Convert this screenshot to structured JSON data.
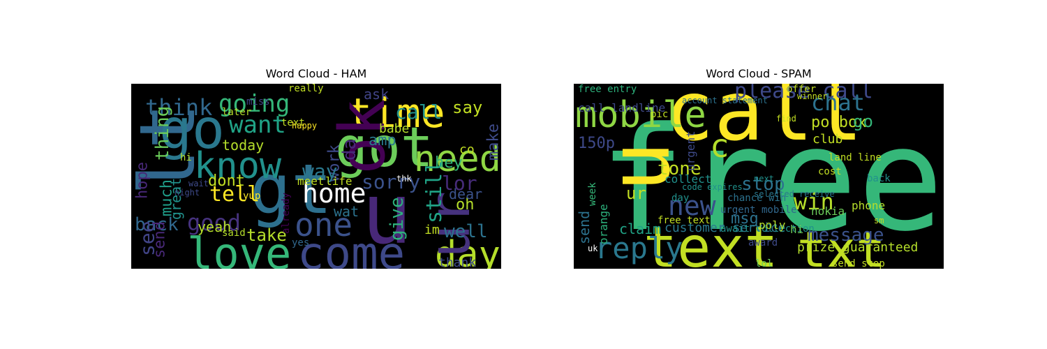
{
  "chart_data": [
    {
      "type": "wordcloud",
      "title": "Word Cloud - HAM",
      "background": "#000000",
      "palette": "viridis",
      "words": [
        {
          "text": "u",
          "color": "#482878"
        },
        {
          "text": "got",
          "color": "#6ccd5a"
        },
        {
          "text": "gt",
          "color": "#2d708e"
        },
        {
          "text": "lt",
          "color": "#31688e"
        },
        {
          "text": "go",
          "color": "#2a788e"
        },
        {
          "text": "love",
          "color": "#35b779"
        },
        {
          "text": "come",
          "color": "#3e4989"
        },
        {
          "text": "time",
          "color": "#fde725"
        },
        {
          "text": "ok",
          "color": "#440154"
        },
        {
          "text": "know",
          "color": "#21918c"
        },
        {
          "text": "day",
          "color": "#b5de2b"
        },
        {
          "text": "one",
          "color": "#3b528b"
        },
        {
          "text": "ur",
          "color": "#46327e"
        },
        {
          "text": "need",
          "color": "#8fd744"
        },
        {
          "text": "going",
          "color": "#35b779"
        },
        {
          "text": "think",
          "color": "#31688e"
        },
        {
          "text": "home",
          "color": "#ffffff"
        },
        {
          "text": "want",
          "color": "#20a386"
        },
        {
          "text": "good",
          "color": "#46327e"
        },
        {
          "text": "still",
          "color": "#20a386"
        },
        {
          "text": "tell",
          "color": "#fde725"
        },
        {
          "text": "back",
          "color": "#31688e"
        },
        {
          "text": "call",
          "color": "#21918c"
        },
        {
          "text": "da",
          "color": "#472c7a"
        },
        {
          "text": "lor",
          "color": "#472c7a"
        },
        {
          "text": "sorry",
          "color": "#3b528b"
        },
        {
          "text": "well",
          "color": "#2c728e"
        },
        {
          "text": "see",
          "color": "#414487"
        },
        {
          "text": "give",
          "color": "#2db27d"
        },
        {
          "text": "work",
          "color": "#3e4a89"
        },
        {
          "text": "way",
          "color": "#2a788e"
        },
        {
          "text": "say",
          "color": "#c2df23"
        },
        {
          "text": "take",
          "color": "#b5de2b"
        },
        {
          "text": "dont",
          "color": "#c2df23"
        },
        {
          "text": "much",
          "color": "#1f9e89"
        },
        {
          "text": "hey",
          "color": "#35b779"
        },
        {
          "text": "make",
          "color": "#3e4a89"
        },
        {
          "text": "thing",
          "color": "#6ccd5a"
        },
        {
          "text": "oh",
          "color": "#b5de2b"
        },
        {
          "text": "today",
          "color": "#b5de2b"
        },
        {
          "text": "ask",
          "color": "#414487"
        },
        {
          "text": "babe",
          "color": "#b5de2b"
        },
        {
          "text": "amp",
          "color": "#2a788e"
        },
        {
          "text": "hope",
          "color": "#482878"
        },
        {
          "text": "send",
          "color": "#482878"
        },
        {
          "text": "wat",
          "color": "#2c728e"
        },
        {
          "text": "dear",
          "color": "#3b528b"
        },
        {
          "text": "im",
          "color": "#c2df23"
        },
        {
          "text": "yeah",
          "color": "#b5de2b"
        },
        {
          "text": "thank",
          "color": "#3e4989"
        },
        {
          "text": "co",
          "color": "#c2df23"
        },
        {
          "text": "meet",
          "color": "#c2df23"
        },
        {
          "text": "life",
          "color": "#c2df23"
        },
        {
          "text": "great",
          "color": "#21918c"
        },
        {
          "text": "later",
          "color": "#b5de2b"
        },
        {
          "text": "text",
          "color": "#c2df23"
        },
        {
          "text": "really",
          "color": "#c2df23"
        },
        {
          "text": "happy",
          "color": "#fde725"
        },
        {
          "text": "yup",
          "color": "#fde725"
        },
        {
          "text": "said",
          "color": "#b5de2b"
        },
        {
          "text": "miss",
          "color": "#414487"
        },
        {
          "text": "yes",
          "color": "#31688e"
        },
        {
          "text": "hi",
          "color": "#b5de2b"
        },
        {
          "text": "already",
          "color": "#440154"
        },
        {
          "text": "night",
          "color": "#3e4a89"
        },
        {
          "text": "wait",
          "color": "#3e4a89"
        },
        {
          "text": "thk",
          "color": "#ffffff"
        }
      ]
    },
    {
      "type": "wordcloud",
      "title": "Word Cloud - SPAM",
      "background": "#000000",
      "palette": "viridis",
      "words": [
        {
          "text": "free",
          "color": "#35b779"
        },
        {
          "text": "call",
          "color": "#fde725"
        },
        {
          "text": "text",
          "color": "#c2df23"
        },
        {
          "text": "mobile",
          "color": "#8fd744"
        },
        {
          "text": "u",
          "color": "#fde725"
        },
        {
          "text": "txt",
          "color": "#c2df23"
        },
        {
          "text": "reply",
          "color": "#2a788e"
        },
        {
          "text": "please call",
          "color": "#3e4989"
        },
        {
          "text": "c",
          "color": "#b5de2b"
        },
        {
          "text": "new",
          "color": "#3b528b"
        },
        {
          "text": "chat",
          "color": "#2c728e"
        },
        {
          "text": "stop",
          "color": "#2c728e"
        },
        {
          "text": "tone",
          "color": "#c2df23"
        },
        {
          "text": "win",
          "color": "#b5de2b"
        },
        {
          "text": "150p",
          "color": "#3e4989"
        },
        {
          "text": "message",
          "color": "#3b528b"
        },
        {
          "text": "msg",
          "color": "#2c728e"
        },
        {
          "text": "claim",
          "color": "#20a386"
        },
        {
          "text": "send",
          "color": "#2c728e"
        },
        {
          "text": "ur",
          "color": "#c2df23"
        },
        {
          "text": "po box",
          "color": "#c2df23"
        },
        {
          "text": "go",
          "color": "#35b779"
        },
        {
          "text": "customer service",
          "color": "#2a788e"
        },
        {
          "text": "prize guaranteed",
          "color": "#b5de2b"
        },
        {
          "text": "free text",
          "color": "#c2df23"
        },
        {
          "text": "nokia",
          "color": "#6ccd5a"
        },
        {
          "text": "phone",
          "color": "#b5de2b"
        },
        {
          "text": "club",
          "color": "#c2df23"
        },
        {
          "text": "collect",
          "color": "#21918c"
        },
        {
          "text": "await collection",
          "color": "#21918c"
        },
        {
          "text": "free entry",
          "color": "#2db27d"
        },
        {
          "text": "call landline",
          "color": "#3e4989"
        },
        {
          "text": "urgent mobile",
          "color": "#31688e"
        },
        {
          "text": "chance win",
          "color": "#2c728e"
        },
        {
          "text": "land line",
          "color": "#c2df23"
        },
        {
          "text": "award",
          "color": "#3e4a89"
        },
        {
          "text": "send stop",
          "color": "#c2df23"
        },
        {
          "text": "poly",
          "color": "#b5de2b"
        },
        {
          "text": "week",
          "color": "#35b779"
        },
        {
          "text": "orange",
          "color": "#2db27d"
        },
        {
          "text": "day",
          "color": "#21918c"
        },
        {
          "text": "urgent",
          "color": "#3e4a89"
        },
        {
          "text": "hi",
          "color": "#6ccd5a"
        },
        {
          "text": "lol",
          "color": "#6ccd5a"
        },
        {
          "text": "next",
          "color": "#21918c"
        },
        {
          "text": "find",
          "color": "#c2df23"
        },
        {
          "text": "cost",
          "color": "#c2df23"
        },
        {
          "text": "back",
          "color": "#21918c"
        },
        {
          "text": "sm",
          "color": "#c2df23"
        },
        {
          "text": "uk",
          "color": "#ffffff"
        },
        {
          "text": "pic",
          "color": "#c2df23"
        },
        {
          "text": "offer",
          "color": "#c2df23"
        },
        {
          "text": "winner",
          "color": "#c2df23"
        },
        {
          "text": "account statement",
          "color": "#2c728e"
        },
        {
          "text": "selected receive",
          "color": "#2a788e"
        },
        {
          "text": "code expires",
          "color": "#21918c"
        }
      ]
    }
  ]
}
